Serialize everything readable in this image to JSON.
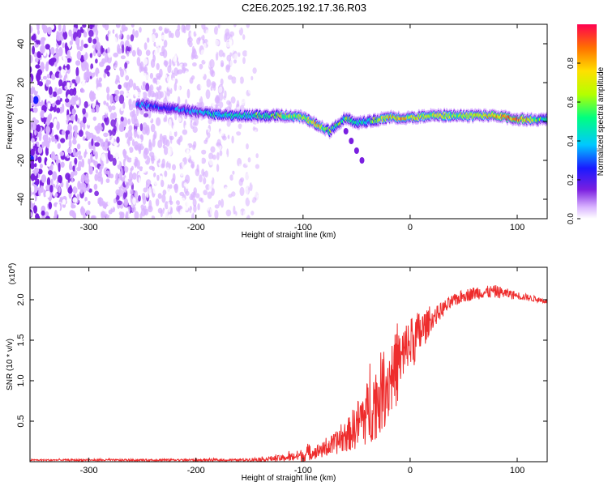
{
  "title": "C2E6.2025.192.17.36.R03",
  "chart_data": [
    {
      "type": "heatmap",
      "xlabel": "Height of straight line (km)",
      "ylabel": "Frequency (Hz)",
      "xlim": [
        -355,
        128
      ],
      "ylim": [
        -50,
        50
      ],
      "x_ticks": [
        -300,
        -200,
        -100,
        0,
        100
      ],
      "y_ticks": [
        -40,
        -20,
        0,
        20,
        40
      ],
      "colorbar": {
        "label": "Normalized spectral amplitude",
        "range": [
          0,
          1
        ],
        "ticks": [
          0.0,
          0.2,
          0.4,
          0.6,
          0.8
        ],
        "colors": [
          "#ffffff",
          "#d9b3ff",
          "#7a1fe0",
          "#1a1aff",
          "#00c8ff",
          "#00ff80",
          "#b4ff00",
          "#ffe000",
          "#ff7000",
          "#ff0050"
        ]
      },
      "ridge": {
        "x": [
          -255,
          -230,
          -200,
          -170,
          -140,
          -120,
          -100,
          -85,
          -75,
          -60,
          -50,
          -40,
          -20,
          0,
          20,
          50,
          80,
          100,
          128
        ],
        "freq_hz": [
          9,
          7,
          5,
          3,
          3,
          3,
          2,
          -2,
          -5,
          2,
          -1,
          0,
          2,
          2,
          3,
          3,
          3,
          1,
          1
        ],
        "amplitude": [
          0.4,
          0.35,
          0.45,
          0.5,
          0.55,
          0.65,
          0.7,
          0.75,
          0.6,
          0.55,
          0.55,
          0.5,
          0.8,
          0.75,
          0.7,
          0.7,
          0.85,
          0.95,
          0.5
        ]
      },
      "noise": {
        "x_range": [
          -355,
          -140
        ],
        "amplitude_max": 0.25
      },
      "tail": {
        "x": [
          -60,
          -55,
          -50,
          -45
        ],
        "freq_hz": [
          -5,
          -10,
          -15,
          -20
        ]
      }
    },
    {
      "type": "line",
      "xlabel": "Height of straight line (km)",
      "ylabel": "SNR (10 * v/v)",
      "y_multiplier": "(x10",
      "y_multiplier_exp": "4",
      "y_multiplier_close": ")",
      "xlim": [
        -355,
        128
      ],
      "ylim": [
        0,
        2.4
      ],
      "x_ticks": [
        -300,
        -200,
        -100,
        0,
        100
      ],
      "y_ticks": [
        0.5,
        1.0,
        1.5,
        2.0
      ],
      "y_tick_labels": [
        "0.5",
        "1.0",
        "1.5",
        "2.0"
      ],
      "color": "#ee2c2c",
      "envelope": {
        "x": [
          -355,
          -160,
          -120,
          -100,
          -80,
          -60,
          -50,
          -40,
          -30,
          -20,
          -10,
          0,
          10,
          20,
          30,
          40,
          50,
          60,
          80,
          100,
          128
        ],
        "mean": [
          0.02,
          0.02,
          0.04,
          0.08,
          0.15,
          0.3,
          0.45,
          0.6,
          0.8,
          1.0,
          1.2,
          1.45,
          1.6,
          1.75,
          1.88,
          1.98,
          2.05,
          2.08,
          2.1,
          2.05,
          1.98
        ],
        "spread": [
          0.01,
          0.015,
          0.04,
          0.08,
          0.1,
          0.18,
          0.3,
          0.4,
          0.5,
          0.5,
          0.45,
          0.35,
          0.28,
          0.12,
          0.1,
          0.08,
          0.08,
          0.08,
          0.08,
          0.05,
          0.03
        ]
      }
    }
  ]
}
